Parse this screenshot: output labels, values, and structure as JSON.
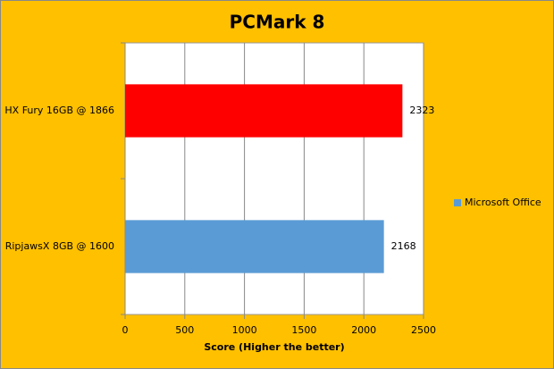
{
  "chart_data": {
    "type": "hbar",
    "title": "PCMark 8",
    "categories": [
      "HX Fury 16GB @ 1866",
      "RipjawsX 8GB @ 1600"
    ],
    "series": [
      {
        "name": "Microsoft Office",
        "color": "#5b9bd5",
        "point_colors": [
          "#ff0000",
          "#5b9bd5"
        ],
        "values": [
          2323,
          2168
        ]
      }
    ],
    "xlabel": "Score (Higher the better)",
    "xlim": [
      0,
      2500
    ],
    "xticks": [
      0,
      500,
      1000,
      1500,
      2000,
      2500
    ],
    "grid": true,
    "legend": "right"
  }
}
